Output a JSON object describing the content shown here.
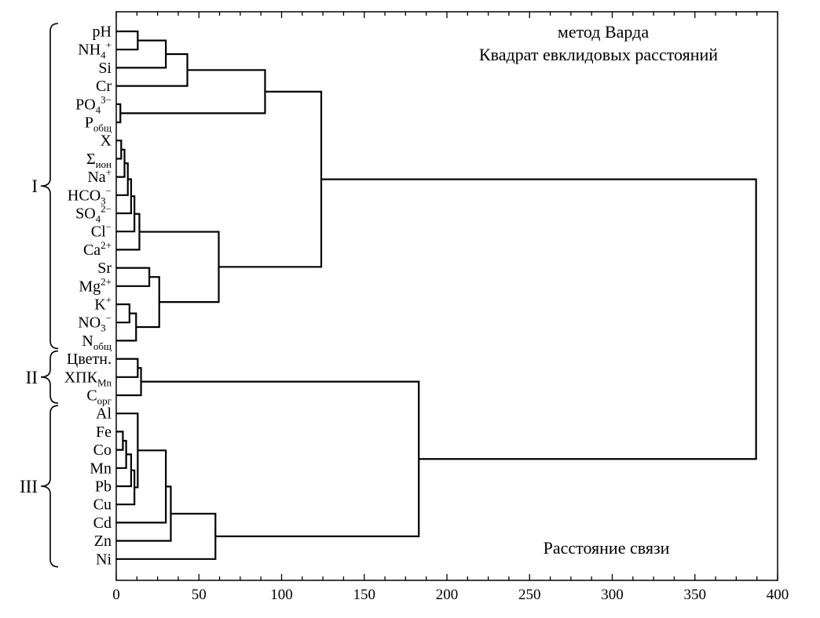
{
  "chart_data": {
    "type": "dendrogram",
    "method": "метод Варда",
    "distance_metric": "Квадрат евклидовых расстояний",
    "xlabel": "Расстояние связи",
    "xlim": [
      0,
      400
    ],
    "xticks": [
      0,
      50,
      100,
      150,
      200,
      250,
      300,
      350,
      400
    ],
    "minor_tick_step": 12.5,
    "orientation": "left",
    "leaves": [
      [
        [
          "pH"
        ]
      ],
      [
        [
          "NH"
        ],
        [
          "4",
          "sub"
        ],
        [
          "+",
          "sup"
        ]
      ],
      [
        [
          "Si"
        ]
      ],
      [
        [
          "Cr"
        ]
      ],
      [
        [
          "PO"
        ],
        [
          "4",
          "sub"
        ],
        [
          "3−",
          "sup"
        ]
      ],
      [
        [
          "P"
        ],
        [
          "общ",
          "sub"
        ]
      ],
      [
        [
          "X"
        ]
      ],
      [
        [
          "Σ"
        ],
        [
          "ион",
          "sub"
        ]
      ],
      [
        [
          "Na"
        ],
        [
          "+",
          "sup"
        ]
      ],
      [
        [
          "HCO"
        ],
        [
          "3",
          "sub"
        ],
        [
          "−",
          "sup"
        ]
      ],
      [
        [
          "SO"
        ],
        [
          "4",
          "sub"
        ],
        [
          "2−",
          "sup"
        ]
      ],
      [
        [
          "Cl"
        ],
        [
          "−",
          "sup"
        ]
      ],
      [
        [
          "Ca"
        ],
        [
          "2+",
          "sup"
        ]
      ],
      [
        [
          "Sr"
        ]
      ],
      [
        [
          "Mg"
        ],
        [
          "2+",
          "sup"
        ]
      ],
      [
        [
          "K"
        ],
        [
          "+",
          "sup"
        ]
      ],
      [
        [
          "NO"
        ],
        [
          "3",
          "sub"
        ],
        [
          "−",
          "sup"
        ]
      ],
      [
        [
          "N"
        ],
        [
          "общ",
          "sub"
        ]
      ],
      [
        [
          "Цветн."
        ]
      ],
      [
        [
          "ХПК"
        ],
        [
          "Mn",
          "sub"
        ]
      ],
      [
        [
          "С"
        ],
        [
          "орг",
          "sub"
        ]
      ],
      [
        [
          "Al"
        ]
      ],
      [
        [
          "Fe"
        ]
      ],
      [
        [
          "Co"
        ]
      ],
      [
        [
          "Mn"
        ]
      ],
      [
        [
          "Pb"
        ]
      ],
      [
        [
          "Cu"
        ]
      ],
      [
        [
          "Cd"
        ]
      ],
      [
        [
          "Zn"
        ]
      ],
      [
        [
          "Ni"
        ]
      ]
    ],
    "groups": [
      {
        "label": "I",
        "from": 0,
        "to": 17
      },
      {
        "label": "II",
        "from": 18,
        "to": 20
      },
      {
        "label": "III",
        "from": 21,
        "to": 29
      }
    ],
    "tree": {
      "d": 387,
      "c": [
        {
          "d": 124,
          "c": [
            {
              "d": 90,
              "c": [
                {
                  "d": 43,
                  "c": [
                    {
                      "d": 30,
                      "c": [
                        {
                          "d": 13,
                          "c": [
                            0,
                            1
                          ]
                        },
                        2
                      ]
                    },
                    3
                  ]
                },
                {
                  "d": 2.5,
                  "c": [
                    4,
                    5
                  ]
                }
              ]
            },
            {
              "d": 62,
              "c": [
                {
                  "d": 14,
                  "c": [
                    {
                      "d": 11,
                      "c": [
                        {
                          "d": 9,
                          "c": [
                            {
                              "d": 7,
                              "c": [
                                {
                                  "d": 5,
                                  "c": [
                                    {
                                      "d": 3,
                                      "c": [
                                        6,
                                        7
                                      ]
                                    },
                                    8
                                  ]
                                },
                                9
                              ]
                            },
                            10
                          ]
                        },
                        11
                      ]
                    },
                    12
                  ]
                },
                {
                  "d": 26,
                  "c": [
                    {
                      "d": 20,
                      "c": [
                        13,
                        14
                      ]
                    },
                    {
                      "d": 12,
                      "c": [
                        {
                          "d": 8,
                          "c": [
                            15,
                            16
                          ]
                        },
                        17
                      ]
                    }
                  ]
                }
              ]
            }
          ]
        },
        {
          "d": 183,
          "c": [
            {
              "d": 15,
              "c": [
                {
                  "d": 13,
                  "c": [
                    18,
                    19
                  ]
                },
                20
              ]
            },
            {
              "d": 60,
              "c": [
                {
                  "d": 33,
                  "c": [
                    {
                      "d": 30,
                      "c": [
                        {
                          "d": 13,
                          "c": [
                            21,
                            {
                              "d": 11,
                              "c": [
                                {
                                  "d": 9,
                                  "c": [
                                    {
                                      "d": 6,
                                      "c": [
                                        {
                                          "d": 4,
                                          "c": [
                                            22,
                                            23
                                          ]
                                        },
                                        24
                                      ]
                                    },
                                    25
                                  ]
                                },
                                26
                              ]
                            }
                          ]
                        },
                        27
                      ]
                    },
                    28
                  ]
                },
                29
              ]
            }
          ]
        }
      ]
    }
  }
}
